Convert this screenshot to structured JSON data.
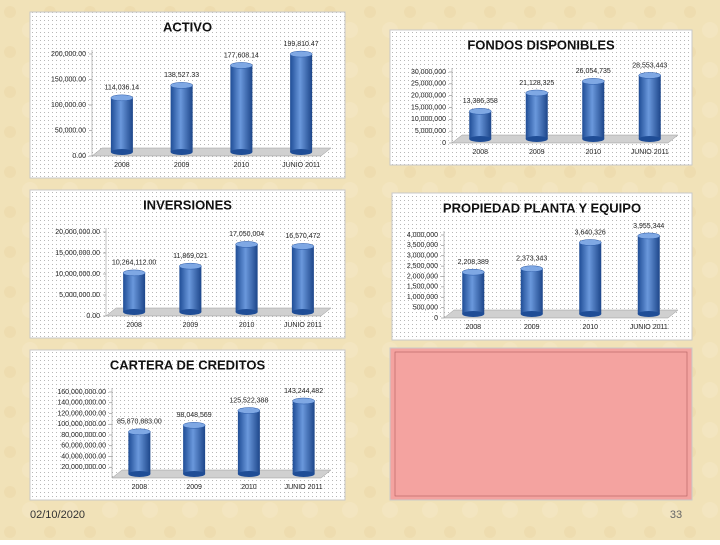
{
  "chart_data": [
    {
      "type": "bar",
      "title": "ACTIVO",
      "categories": [
        "2008",
        "2009",
        "2010",
        "JUNIO 2011"
      ],
      "values": [
        114036.14,
        138527.33,
        177608.14,
        199810.47
      ],
      "value_labels": [
        "114,036.14",
        "138,527.33",
        "177,608.14",
        "199,810.47"
      ],
      "color": "#3d6fc0",
      "ylim": [
        0,
        200000
      ],
      "yticks": [
        {
          "value": 0,
          "label": "0.00"
        },
        {
          "value": 50000,
          "label": "50,000.00"
        },
        {
          "value": 100000,
          "label": "100,000.00"
        },
        {
          "value": 150000,
          "label": "150,000.00"
        },
        {
          "value": 200000,
          "label": "200,000.00"
        }
      ]
    },
    {
      "type": "bar",
      "title": "FONDOS DISPONIBLES",
      "categories": [
        "2008",
        "2009",
        "2010",
        "JUNIO 2011"
      ],
      "values": [
        13386358,
        21128325,
        26054735,
        28553443
      ],
      "value_labels": [
        "13,386,358",
        "21,128,325",
        "26,054,735",
        "28,553,443"
      ],
      "color": "#3d6fc0",
      "ylim": [
        0,
        30000000
      ],
      "yticks": [
        0,
        {
          "value": 5000000,
          "label": "5,000,000"
        },
        {
          "value": 10000000,
          "label": "10,000,000"
        },
        {
          "value": 15000000,
          "label": "15,000,000"
        },
        {
          "value": 20000000,
          "label": "20,000,000"
        },
        {
          "value": 25000000,
          "label": "25,000,000"
        },
        {
          "value": 30000000,
          "label": "30,000,000"
        }
      ]
    },
    {
      "type": "bar",
      "title": "INVERSIONES",
      "categories": [
        "2008",
        "2009",
        "2010",
        "JUNIO 2011"
      ],
      "values": [
        10264112,
        11869021,
        17050004,
        16570472
      ],
      "value_labels": [
        "10,264,112.00",
        "11,869,021",
        "17,050,004",
        "16,570,472"
      ],
      "color": "#3d6fc0",
      "ylim": [
        0,
        20000000
      ],
      "yticks": [
        {
          "value": 0,
          "label": "0.00"
        },
        {
          "value": 5000000,
          "label": "5,000,000.00"
        },
        {
          "value": 10000000,
          "label": "10,000,000.00"
        },
        {
          "value": 15000000,
          "label": "15,000,000.00"
        },
        {
          "value": 20000000,
          "label": "20,000,000.00"
        }
      ]
    },
    {
      "type": "bar",
      "title": "PROPIEDAD PLANTA Y EQUIPO",
      "categories": [
        "2008",
        "2009",
        "2010",
        "JUNIO 2011"
      ],
      "values": [
        2208389,
        2373343,
        3640326,
        3955344
      ],
      "value_labels": [
        "2,208,389",
        "2,373,343",
        "3,640,326",
        "3,955,344"
      ],
      "color": "#3d6fc0",
      "ylim": [
        0,
        4000000
      ],
      "yticks": [
        0,
        {
          "value": 500000,
          "label": "500,000"
        },
        {
          "value": 1000000,
          "label": "1,000,000"
        },
        {
          "value": 1500000,
          "label": "1,500,000"
        },
        {
          "value": 2000000,
          "label": "2,000,000"
        },
        {
          "value": 2500000,
          "label": "2,500,000"
        },
        {
          "value": 3000000,
          "label": "3,000,000"
        },
        {
          "value": 3500000,
          "label": "3,500,000"
        },
        {
          "value": 4000000,
          "label": "4,000,000"
        }
      ]
    },
    {
      "type": "bar",
      "title": "CARTERA DE CREDITOS",
      "categories": [
        "2008",
        "2009",
        "2010",
        "JUNIO 2011"
      ],
      "values": [
        85870883,
        98048569,
        125522388,
        143244482
      ],
      "value_labels": [
        "85,870,883.00",
        "98,048,569",
        "125,522,388",
        "143,244,482"
      ],
      "color": "#3d6fc0",
      "ylim": [
        0,
        160000000
      ],
      "yticks": [
        {
          "value": 20000000,
          "label": "20,000,000.00"
        },
        {
          "value": 40000000,
          "label": "40,000,000.00"
        },
        {
          "value": 60000000,
          "label": "60,000,000.00"
        },
        {
          "value": 80000000,
          "label": "80,000,000.00"
        },
        {
          "value": 100000000,
          "label": "100,000,000.00"
        },
        {
          "value": 120000000,
          "label": "120,000,000.00"
        },
        {
          "value": 140000000,
          "label": "140,000,000.00"
        },
        {
          "value": 160000000,
          "label": "160,000,000.00"
        }
      ]
    }
  ],
  "footer": {
    "date": "02/10/2020",
    "page": "33"
  }
}
